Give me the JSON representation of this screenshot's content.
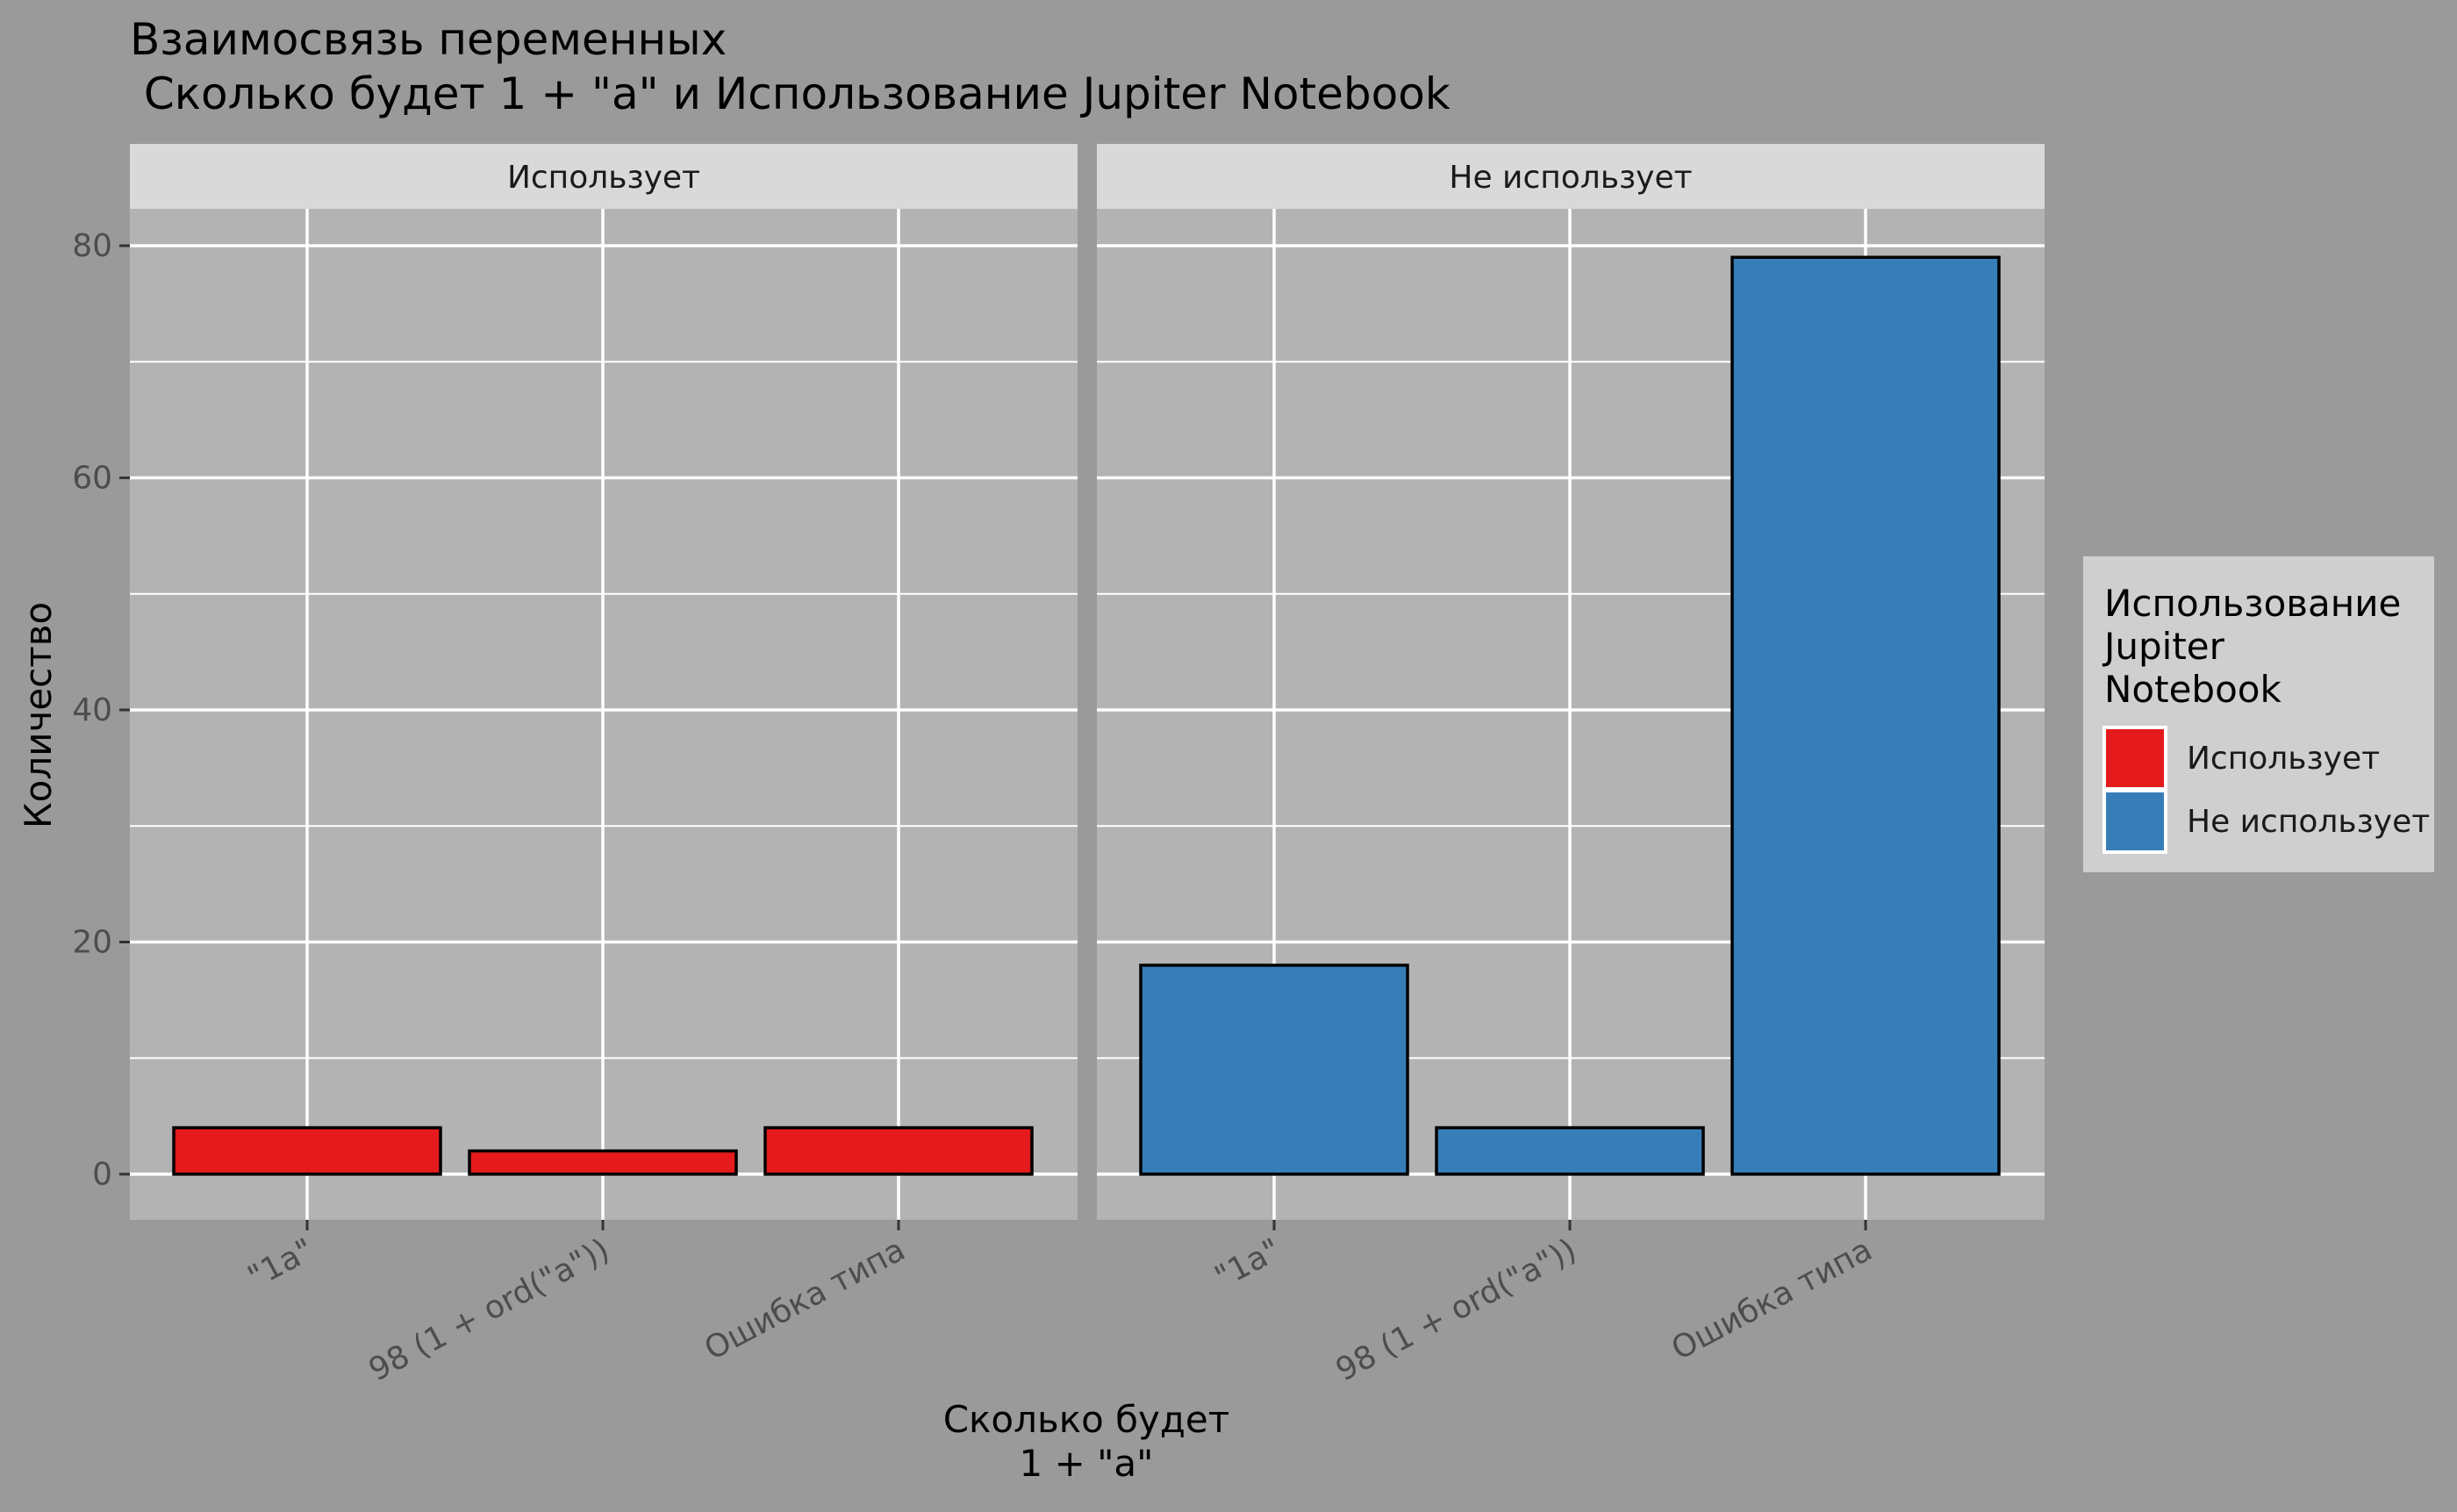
{
  "chart_data": {
    "type": "bar",
    "title_line1": "Взаимосвязь переменных",
    "title_line2": " Сколько будет 1 + \"a\" и Использование Jupiter Notebook",
    "xlabel_line1": "Сколько будет",
    "xlabel_line2": "1 + \"a\"",
    "ylabel": "Количество",
    "ylim": [
      0,
      84
    ],
    "yticks": [
      0,
      20,
      40,
      60,
      80
    ],
    "categories": [
      "\"1a\"",
      "98 (1 + ord(\"a\"))",
      "Ошибка типа"
    ],
    "facets": [
      {
        "name": "Использует",
        "color": "#e41a1c",
        "values": [
          4,
          2,
          4
        ]
      },
      {
        "name": "Не использует",
        "color": "#377eb8",
        "values": [
          18,
          4,
          79
        ]
      }
    ],
    "legend": {
      "title_lines": [
        "Использование",
        "Jupiter",
        "Notebook"
      ],
      "placement": "right",
      "items": [
        {
          "label": "Использует",
          "color": "#e41a1c"
        },
        {
          "label": "Не использует",
          "color": "#377eb8"
        }
      ]
    },
    "grid": true
  }
}
